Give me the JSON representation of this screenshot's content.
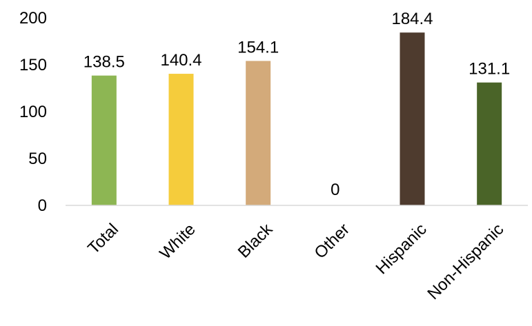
{
  "chart_data": {
    "type": "bar",
    "categories": [
      "Total",
      "White",
      "Black",
      "Other",
      "Hispanic",
      "Non-Hispanic"
    ],
    "values": [
      138.5,
      140.4,
      154.1,
      0,
      184.4,
      131.1
    ],
    "data_labels": [
      "138.5",
      "140.4",
      "154.1",
      "0",
      "184.4",
      "131.1"
    ],
    "colors": [
      "#8db653",
      "#f5cc3c",
      "#d3aa7a",
      "#ffffff",
      "#4e3b2e",
      "#4a6428"
    ],
    "yticks": [
      "0",
      "50",
      "100",
      "150",
      "200"
    ],
    "ylim": [
      0,
      200
    ],
    "grid": false,
    "legend": "none"
  }
}
